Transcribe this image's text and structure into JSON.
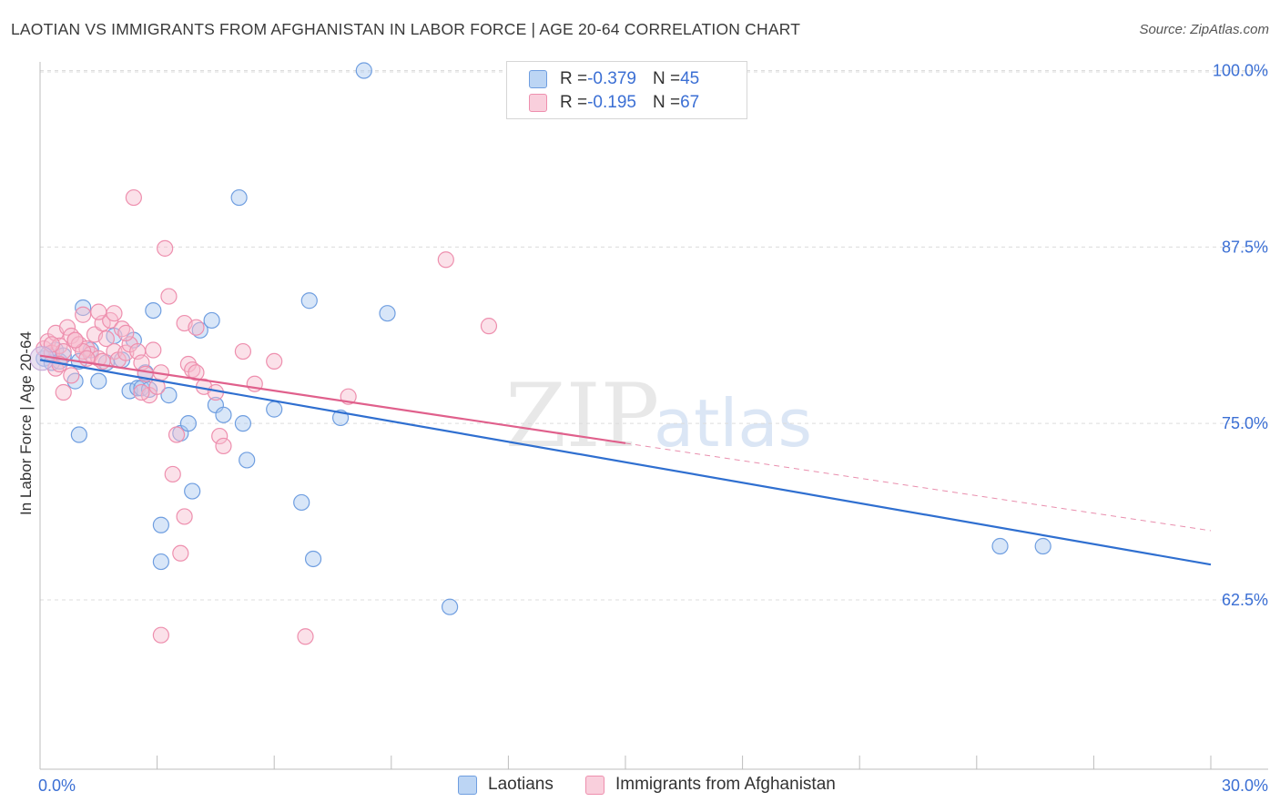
{
  "header": {
    "title": "LAOTIAN VS IMMIGRANTS FROM AFGHANISTAN IN LABOR FORCE | AGE 20-64 CORRELATION CHART",
    "source": "Source: ZipAtlas.com"
  },
  "legend_box": {
    "rows": [
      {
        "r_label": "R = ",
        "r_value": "-0.379",
        "n_label": "N = ",
        "n_value": "45"
      },
      {
        "r_label": "R = ",
        "r_value": "-0.195",
        "n_label": "N = ",
        "n_value": "67"
      }
    ]
  },
  "watermark": {
    "zip": "ZIP",
    "atlas": "atlas"
  },
  "colors": {
    "blue_fill": "#a9c8f0",
    "blue_stroke": "#6f9ee0",
    "blue_line": "#2f6fd0",
    "pink_fill": "#f6bccf",
    "pink_stroke": "#ee8fae",
    "pink_line": "#e0608c",
    "axis_label": "#3b6fd4",
    "grid": "#dcdcdc"
  },
  "chart_data": {
    "type": "scatter",
    "title": "LAOTIAN VS IMMIGRANTS FROM AFGHANISTAN IN LABOR FORCE | AGE 20-64 CORRELATION CHART",
    "xlabel": "",
    "ylabel": "In Labor Force | Age 20-64",
    "xlim": [
      0,
      30
    ],
    "ylim": [
      50.5,
      101
    ],
    "x_tick_labels": [
      "0.0%",
      "30.0%"
    ],
    "y_ticks": [
      62.5,
      75.0,
      87.5,
      100.0
    ],
    "y_tick_labels": [
      "62.5%",
      "75.0%",
      "87.5%",
      "100.0%"
    ],
    "grid": true,
    "series": [
      {
        "name": "Laotians",
        "color": "blue",
        "r": -0.379,
        "n": 45,
        "trend": {
          "x0": 0,
          "y0": 79.5,
          "x1": 30,
          "y1": 65.0,
          "solid_to": 30
        },
        "points": [
          [
            0.1,
            79.6
          ],
          [
            0.2,
            79.9
          ],
          [
            0.3,
            79.3
          ],
          [
            0.4,
            80.2
          ],
          [
            0.5,
            79.4
          ],
          [
            0.6,
            79.8
          ],
          [
            0.9,
            78.0
          ],
          [
            1.0,
            79.4
          ],
          [
            1.1,
            83.2
          ],
          [
            1.3,
            80.2
          ],
          [
            1.5,
            78.0
          ],
          [
            1.7,
            79.3
          ],
          [
            1.9,
            81.2
          ],
          [
            2.1,
            79.5
          ],
          [
            2.3,
            77.3
          ],
          [
            2.4,
            80.9
          ],
          [
            2.5,
            77.5
          ],
          [
            2.6,
            77.5
          ],
          [
            2.7,
            78.6
          ],
          [
            2.8,
            77.4
          ],
          [
            2.9,
            83.0
          ],
          [
            3.1,
            67.8
          ],
          [
            3.1,
            65.2
          ],
          [
            3.3,
            77.0
          ],
          [
            3.6,
            74.3
          ],
          [
            3.8,
            75.0
          ],
          [
            3.9,
            70.2
          ],
          [
            4.1,
            81.6
          ],
          [
            4.4,
            82.3
          ],
          [
            4.5,
            76.3
          ],
          [
            4.7,
            75.6
          ],
          [
            5.1,
            91.0
          ],
          [
            5.2,
            75.0
          ],
          [
            5.3,
            72.4
          ],
          [
            6.0,
            76.0
          ],
          [
            6.7,
            69.4
          ],
          [
            6.9,
            83.7
          ],
          [
            7.0,
            65.4
          ],
          [
            7.7,
            75.4
          ],
          [
            8.3,
            100.0
          ],
          [
            8.9,
            82.8
          ],
          [
            10.5,
            62.0
          ],
          [
            24.6,
            66.3
          ],
          [
            25.7,
            66.3
          ],
          [
            1.0,
            74.2
          ]
        ]
      },
      {
        "name": "Immigrants from Afghanistan",
        "color": "pink",
        "r": -0.195,
        "n": 67,
        "trend": {
          "x0": 0,
          "y0": 79.8,
          "x1": 30,
          "y1": 67.4,
          "solid_to": 15.0
        },
        "points": [
          [
            0.1,
            80.3
          ],
          [
            0.2,
            80.8
          ],
          [
            0.3,
            80.0
          ],
          [
            0.4,
            81.4
          ],
          [
            0.5,
            80.5
          ],
          [
            0.6,
            80.1
          ],
          [
            0.7,
            81.8
          ],
          [
            0.8,
            81.2
          ],
          [
            0.9,
            80.9
          ],
          [
            1.0,
            80.6
          ],
          [
            1.1,
            82.7
          ],
          [
            1.2,
            80.3
          ],
          [
            1.3,
            79.9
          ],
          [
            1.4,
            81.3
          ],
          [
            1.5,
            79.6
          ],
          [
            1.6,
            82.1
          ],
          [
            1.7,
            81.0
          ],
          [
            1.8,
            82.3
          ],
          [
            1.9,
            80.1
          ],
          [
            2.0,
            79.5
          ],
          [
            2.1,
            81.7
          ],
          [
            2.2,
            80.0
          ],
          [
            2.3,
            80.6
          ],
          [
            2.5,
            80.1
          ],
          [
            2.6,
            79.3
          ],
          [
            2.7,
            78.5
          ],
          [
            2.8,
            77.0
          ],
          [
            2.9,
            80.2
          ],
          [
            3.0,
            77.6
          ],
          [
            3.1,
            78.6
          ],
          [
            3.2,
            87.4
          ],
          [
            3.3,
            84.0
          ],
          [
            3.5,
            74.2
          ],
          [
            3.6,
            65.8
          ],
          [
            3.7,
            82.1
          ],
          [
            3.8,
            79.2
          ],
          [
            3.9,
            78.8
          ],
          [
            4.0,
            81.8
          ],
          [
            4.2,
            77.6
          ],
          [
            4.5,
            77.2
          ],
          [
            4.6,
            74.1
          ],
          [
            4.7,
            73.4
          ],
          [
            5.2,
            80.1
          ],
          [
            5.5,
            77.8
          ],
          [
            6.0,
            79.4
          ],
          [
            6.8,
            59.9
          ],
          [
            7.9,
            76.9
          ],
          [
            10.4,
            86.6
          ],
          [
            11.5,
            81.9
          ],
          [
            2.4,
            91.0
          ],
          [
            0.6,
            77.2
          ],
          [
            1.9,
            82.8
          ],
          [
            1.5,
            82.9
          ],
          [
            3.1,
            60.0
          ],
          [
            3.4,
            71.4
          ],
          [
            3.7,
            68.4
          ],
          [
            0.4,
            78.9
          ],
          [
            2.2,
            81.4
          ],
          [
            1.1,
            80.1
          ],
          [
            0.9,
            80.9
          ],
          [
            0.3,
            80.6
          ],
          [
            2.6,
            77.2
          ],
          [
            0.5,
            79.2
          ],
          [
            1.2,
            79.6
          ],
          [
            4.0,
            78.6
          ],
          [
            0.8,
            78.4
          ],
          [
            1.6,
            79.4
          ]
        ]
      }
    ]
  },
  "bottom_legend": [
    {
      "label": "Laotians"
    },
    {
      "label": "Immigrants from Afghanistan"
    }
  ]
}
